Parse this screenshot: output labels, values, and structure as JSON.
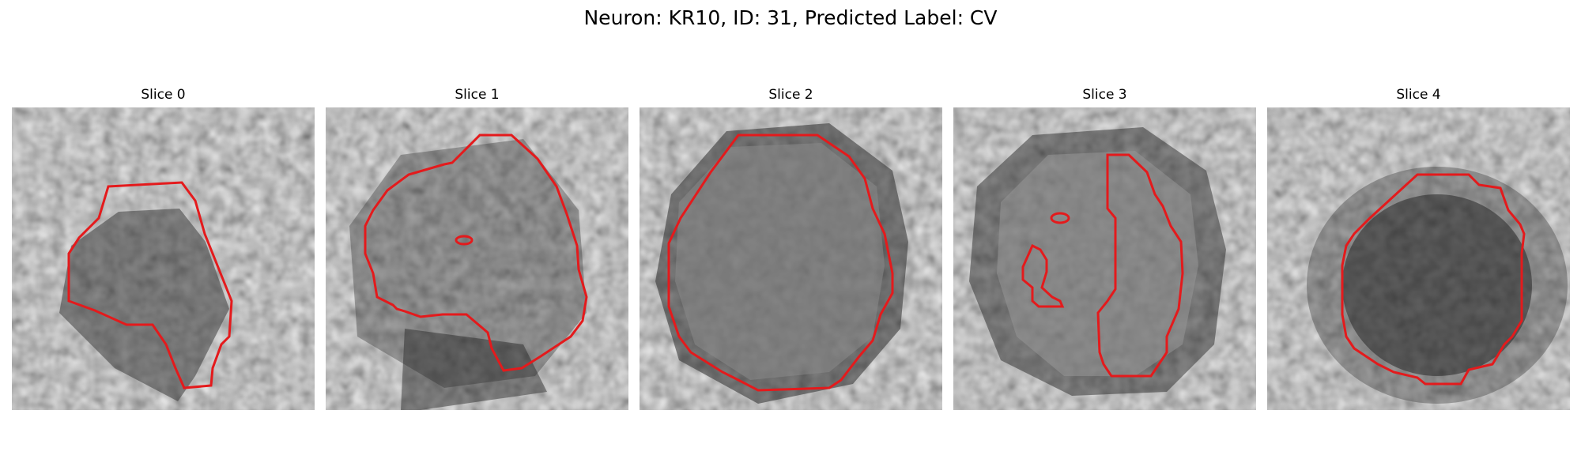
{
  "figure": {
    "title": "Neuron: KR10, ID: 31, Predicted Label: CV"
  },
  "panels": [
    {
      "title": "Slice 0"
    },
    {
      "title": "Slice 1"
    },
    {
      "title": "Slice 2"
    },
    {
      "title": "Slice 3"
    },
    {
      "title": "Slice 4"
    }
  ],
  "colors": {
    "contour": "#e41a1c",
    "background": "#ffffff"
  }
}
